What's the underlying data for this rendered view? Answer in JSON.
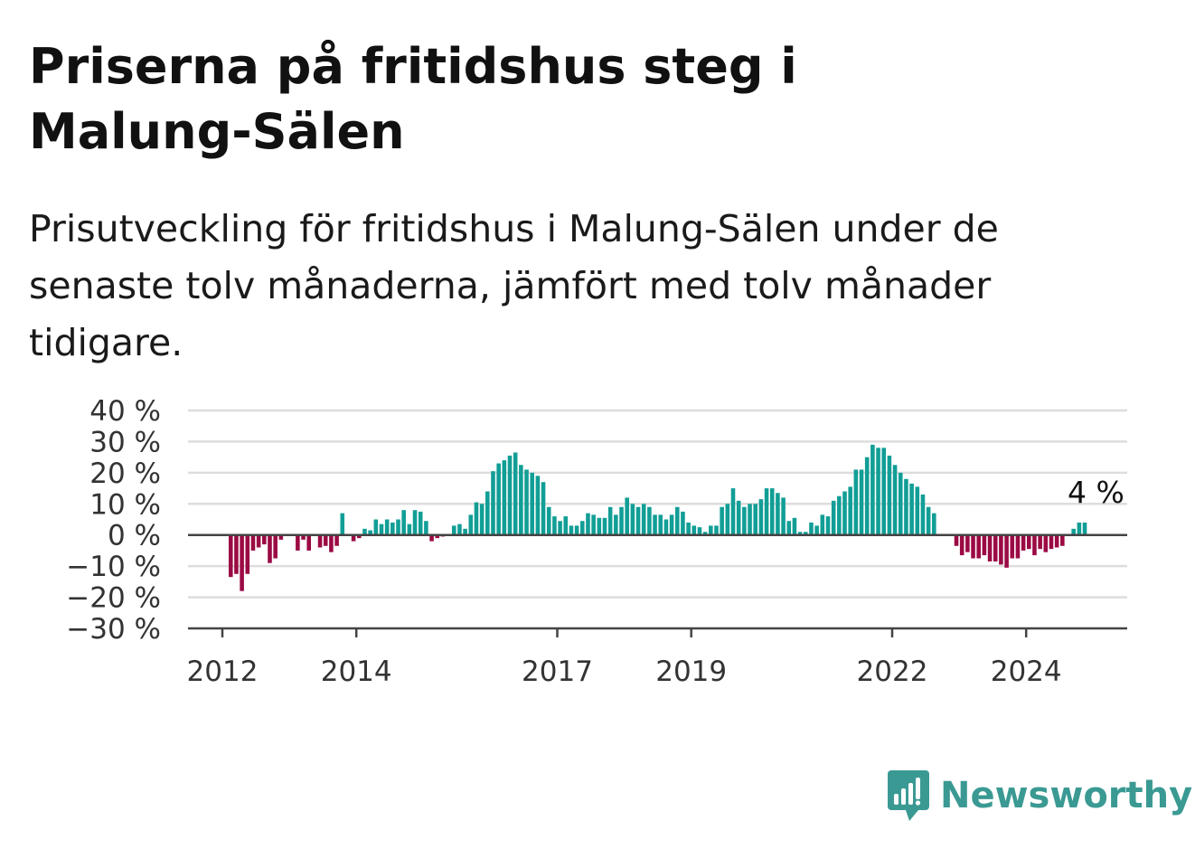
{
  "title": "Priserna på fritidshus steg i Malung-Sälen",
  "subtitle": "Prisutveckling för fritidshus i Malung-Sälen under de senaste tolv månaderna, jämfört med tolv månader tidigare.",
  "brand": {
    "name": "Newsworthy",
    "color": "#3a9a93",
    "icon": "newsworthy-logo-icon"
  },
  "colors": {
    "positive": "#119e96",
    "negative": "#9b0a44",
    "grid": "#dddddd",
    "zero": "#444444"
  },
  "chart_data": {
    "type": "bar",
    "x_start": "2012-01",
    "interval": "month",
    "yticks": [
      40,
      30,
      20,
      10,
      0,
      -10,
      -20,
      -30
    ],
    "ytick_labels": [
      "40 %",
      "30 %",
      "20 %",
      "10 %",
      "0 %",
      "−10 %",
      "−20 %",
      "−30 %"
    ],
    "ylim": [
      -30,
      40
    ],
    "xticks": [
      {
        "date": "2012-01",
        "label": "2012"
      },
      {
        "date": "2014-01",
        "label": "2014"
      },
      {
        "date": "2017-01",
        "label": "2017"
      },
      {
        "date": "2019-01",
        "label": "2019"
      },
      {
        "date": "2022-01",
        "label": "2022"
      },
      {
        "date": "2024-01",
        "label": "2024"
      }
    ],
    "annotation": {
      "text": "4 %",
      "date": "2025-01",
      "value": 4
    },
    "values": [
      0,
      -13.5,
      -12.5,
      -18,
      -12.5,
      -5,
      -4,
      -3,
      -9,
      -7.5,
      -1.5,
      0,
      0,
      -5,
      -1.5,
      -5,
      0,
      -4,
      -3.5,
      -5.5,
      -3.5,
      7,
      0,
      -2,
      -1,
      2,
      1.5,
      5,
      3.5,
      5,
      4,
      5,
      8,
      3.5,
      8,
      7.5,
      4.5,
      -2,
      -1,
      -0.5,
      0,
      3,
      3.5,
      2,
      6.5,
      10.5,
      10,
      14,
      20.5,
      23,
      24,
      25.5,
      26.5,
      22.5,
      21,
      20,
      19,
      17,
      9,
      6,
      4.5,
      6,
      3,
      3,
      4.5,
      7,
      6.5,
      5.5,
      5.5,
      9,
      6.5,
      9,
      12,
      10,
      9,
      10,
      9,
      6.5,
      6.5,
      5,
      6.5,
      9,
      7.5,
      4,
      3,
      2.5,
      1,
      3,
      3,
      9,
      10,
      15,
      11,
      9,
      10,
      10,
      11.5,
      15,
      15,
      13.5,
      12,
      4.5,
      5.5,
      1,
      1,
      4,
      3,
      6.5,
      6,
      11,
      12.5,
      14,
      15.5,
      21,
      21,
      25,
      29,
      28,
      28,
      25.5,
      22.5,
      20,
      18,
      16.5,
      15.5,
      13,
      9,
      7,
      0,
      0,
      0,
      -3.5,
      -6.5,
      -5.5,
      -7.5,
      -7.5,
      -6.5,
      -8.5,
      -8.5,
      -9.5,
      -10.5,
      -7.5,
      -7.5,
      -5,
      -4.5,
      -6.5,
      -4.5,
      -5.5,
      -4.5,
      -4,
      -3.5,
      0,
      2,
      4,
      4
    ]
  }
}
